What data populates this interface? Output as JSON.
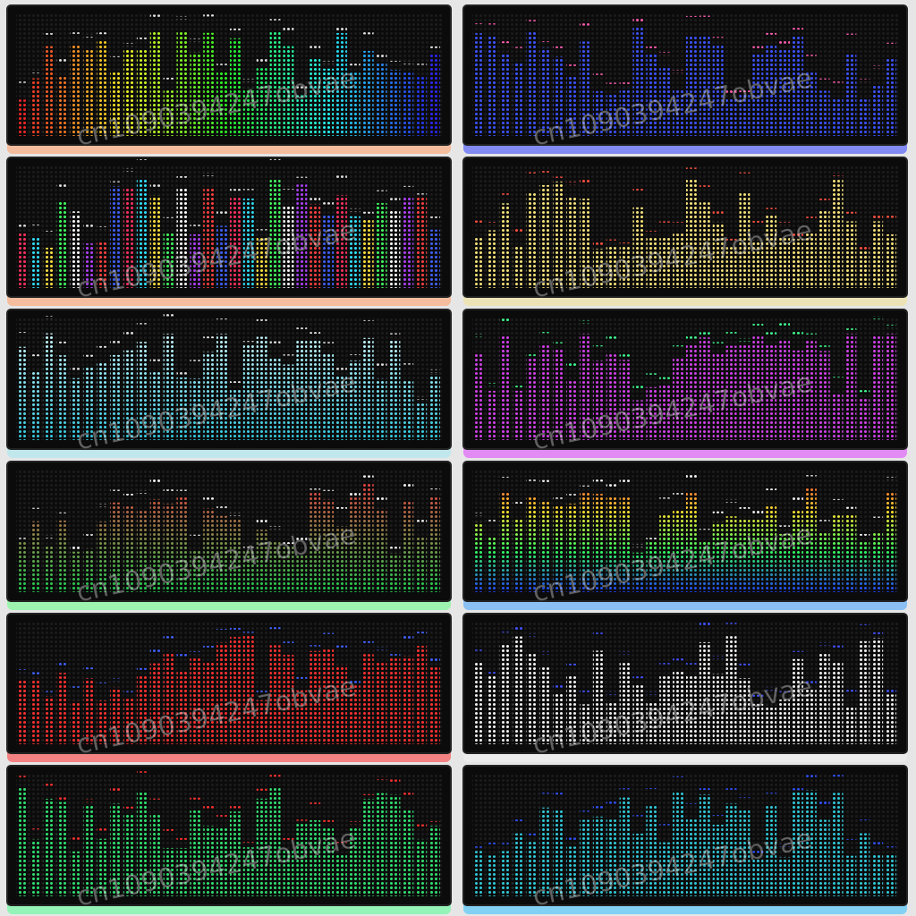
{
  "watermark": "cn1090394247obvae"
}
